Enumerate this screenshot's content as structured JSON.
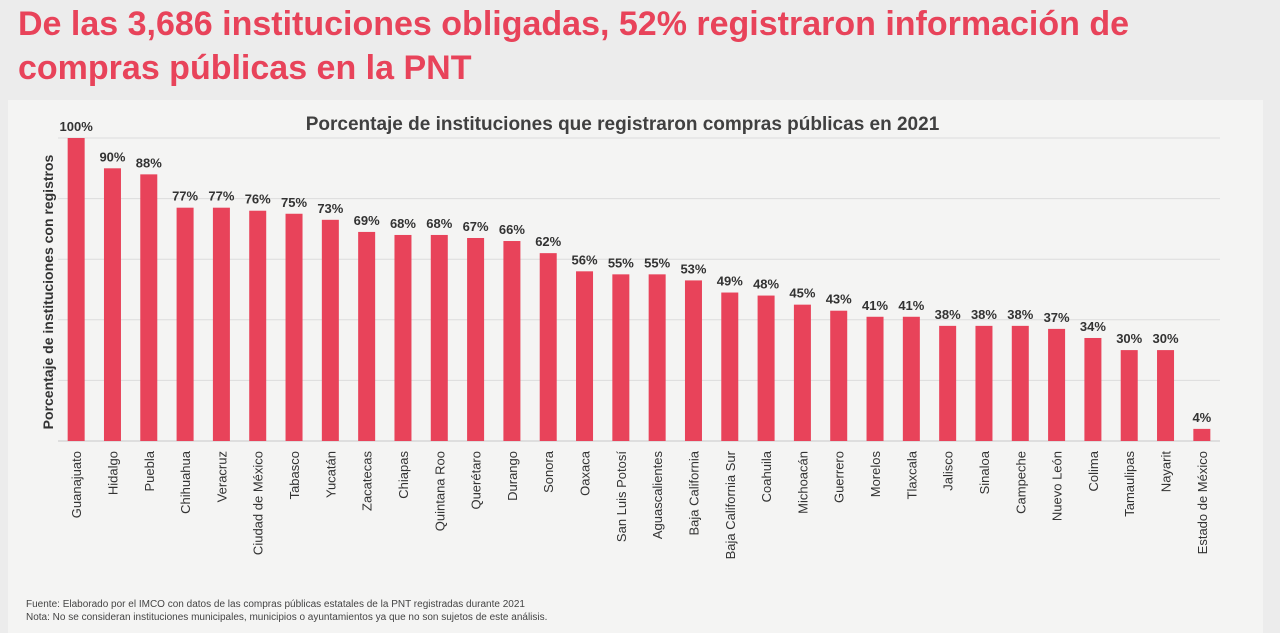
{
  "headline": "De las 3,686 instituciones obligadas, 52% registraron información de compras públicas en la PNT",
  "footnotes": {
    "source": "Fuente: Elaborado por el IMCO con datos de las compras públicas estatales de la PNT registradas durante 2021",
    "note": "Nota: No se consideran instituciones municipales, municipios o ayuntamientos ya que no son sujetos de este análisis."
  },
  "colors": {
    "accent": "#e8435a",
    "bar": "#e8435a"
  },
  "chart_data": {
    "type": "bar",
    "title": "Porcentaje de instituciones que registraron compras públicas en 2021",
    "xlabel": "",
    "ylabel": "Porcentaje de instituciones con registros",
    "ylim": [
      0,
      100
    ],
    "grid": true,
    "grid_step": 20,
    "categories": [
      "Guanajuato",
      "Hidalgo",
      "Puebla",
      "Chihuahua",
      "Veracruz",
      "Ciudad de México",
      "Tabasco",
      "Yucatán",
      "Zacatecas",
      "Chiapas",
      "Quintana Roo",
      "Querétaro",
      "Durango",
      "Sonora",
      "Oaxaca",
      "San Luis Potosí",
      "Aguascalientes",
      "Baja California",
      "Baja California Sur",
      "Coahuila",
      "Michoacán",
      "Guerrero",
      "Morelos",
      "Tlaxcala",
      "Jalisco",
      "Sinaloa",
      "Campeche",
      "Nuevo León",
      "Colima",
      "Tamaulipas",
      "Nayarit",
      "Estado de México"
    ],
    "values": [
      100,
      90,
      88,
      77,
      77,
      76,
      75,
      73,
      69,
      68,
      68,
      67,
      66,
      62,
      56,
      55,
      55,
      53,
      49,
      48,
      45,
      43,
      41,
      41,
      38,
      38,
      38,
      37,
      34,
      30,
      30,
      4
    ],
    "data_labels": [
      "100%",
      "90%",
      "88%",
      "77%",
      "77%",
      "76%",
      "75%",
      "73%",
      "69%",
      "68%",
      "68%",
      "67%",
      "66%",
      "62%",
      "56%",
      "55%",
      "55%",
      "53%",
      "49%",
      "48%",
      "45%",
      "43%",
      "41%",
      "41%",
      "38%",
      "38%",
      "38%",
      "37%",
      "34%",
      "30%",
      "30%",
      "4%"
    ]
  }
}
